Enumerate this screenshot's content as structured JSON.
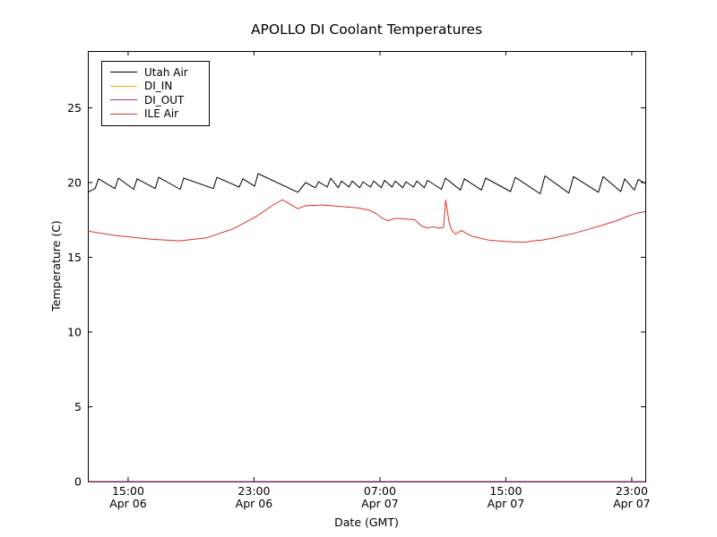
{
  "figure": {
    "background": "#ffffff"
  },
  "chart_data": {
    "type": "line",
    "title": "APOLLO DI Coolant Temperatures",
    "xlabel": "Date (GMT)",
    "ylabel": "Temperature (C)",
    "x_unit": "hours since Apr 06 00:00 GMT",
    "xlim": [
      12.44,
      47.86
    ],
    "ylim": [
      0,
      28.8
    ],
    "grid": false,
    "legend_position": "upper-left",
    "tick_color": "#000000",
    "frame_color": "#000000",
    "xticks": [
      {
        "h": 15,
        "time": "15:00",
        "date": "Apr 06"
      },
      {
        "h": 23,
        "time": "23:00",
        "date": "Apr 06"
      },
      {
        "h": 31,
        "time": "07:00",
        "date": "Apr 07"
      },
      {
        "h": 39,
        "time": "15:00",
        "date": "Apr 07"
      },
      {
        "h": 47,
        "time": "23:00",
        "date": "Apr 07"
      }
    ],
    "yticks": [
      0,
      5,
      10,
      15,
      20,
      25
    ],
    "series": [
      {
        "name": "Utah Air",
        "color": "#000000",
        "points": [
          [
            12.44,
            19.35
          ],
          [
            12.9,
            19.6
          ],
          [
            13.12,
            20.25
          ],
          [
            14.16,
            19.6
          ],
          [
            14.38,
            20.3
          ],
          [
            15.35,
            19.55
          ],
          [
            15.57,
            20.25
          ],
          [
            16.72,
            19.6
          ],
          [
            16.94,
            20.35
          ],
          [
            18.31,
            19.55
          ],
          [
            18.53,
            20.3
          ],
          [
            20.42,
            19.6
          ],
          [
            20.64,
            20.35
          ],
          [
            22.05,
            19.7
          ],
          [
            22.3,
            20.25
          ],
          [
            23.04,
            19.75
          ],
          [
            23.26,
            20.6
          ],
          [
            25.78,
            19.35
          ],
          [
            26.28,
            20.0
          ],
          [
            26.9,
            19.65
          ],
          [
            27.1,
            20.05
          ],
          [
            27.65,
            19.7
          ],
          [
            27.87,
            20.3
          ],
          [
            28.35,
            19.65
          ],
          [
            28.55,
            20.1
          ],
          [
            29.04,
            19.7
          ],
          [
            29.24,
            20.1
          ],
          [
            29.72,
            19.65
          ],
          [
            29.92,
            20.05
          ],
          [
            30.4,
            19.7
          ],
          [
            30.6,
            20.1
          ],
          [
            31.09,
            19.65
          ],
          [
            31.29,
            20.15
          ],
          [
            31.77,
            19.7
          ],
          [
            31.97,
            20.1
          ],
          [
            32.45,
            19.65
          ],
          [
            32.65,
            20.05
          ],
          [
            33.14,
            19.7
          ],
          [
            33.34,
            20.1
          ],
          [
            33.82,
            19.65
          ],
          [
            34.02,
            20.15
          ],
          [
            34.91,
            19.55
          ],
          [
            35.16,
            20.3
          ],
          [
            36.11,
            19.5
          ],
          [
            36.36,
            20.25
          ],
          [
            37.45,
            19.5
          ],
          [
            37.72,
            20.3
          ],
          [
            39.3,
            19.4
          ],
          [
            39.6,
            20.35
          ],
          [
            41.18,
            19.25
          ],
          [
            41.48,
            20.45
          ],
          [
            43.0,
            19.3
          ],
          [
            43.3,
            20.4
          ],
          [
            44.88,
            19.35
          ],
          [
            45.18,
            20.4
          ],
          [
            46.3,
            19.4
          ],
          [
            46.55,
            20.25
          ],
          [
            47.16,
            19.5
          ],
          [
            47.41,
            20.2
          ],
          [
            47.86,
            19.95
          ]
        ]
      },
      {
        "name": "DI_IN",
        "color": "#ffa500",
        "points": [
          [
            12.44,
            0
          ],
          [
            47.86,
            0
          ]
        ]
      },
      {
        "name": "DI_OUT",
        "color": "#993399",
        "points": [
          [
            12.44,
            0
          ],
          [
            47.86,
            0
          ]
        ]
      },
      {
        "name": "ILE Air",
        "color": "#e03030",
        "points": [
          [
            12.44,
            16.75
          ],
          [
            14.26,
            16.45
          ],
          [
            16.54,
            16.2
          ],
          [
            18.25,
            16.1
          ],
          [
            19.96,
            16.3
          ],
          [
            21.67,
            16.9
          ],
          [
            23.09,
            17.7
          ],
          [
            24.23,
            18.5
          ],
          [
            24.8,
            18.85
          ],
          [
            25.77,
            18.25
          ],
          [
            26.28,
            18.45
          ],
          [
            27.36,
            18.5
          ],
          [
            28.49,
            18.4
          ],
          [
            29.64,
            18.3
          ],
          [
            30.32,
            18.15
          ],
          [
            30.78,
            17.9
          ],
          [
            31.18,
            17.6
          ],
          [
            31.52,
            17.45
          ],
          [
            31.92,
            17.6
          ],
          [
            32.32,
            17.6
          ],
          [
            33.23,
            17.5
          ],
          [
            33.63,
            17.1
          ],
          [
            34.03,
            16.95
          ],
          [
            34.37,
            17.05
          ],
          [
            34.77,
            16.95
          ],
          [
            35.05,
            17.0
          ],
          [
            35.17,
            18.85
          ],
          [
            35.4,
            17.3
          ],
          [
            35.57,
            16.8
          ],
          [
            35.8,
            16.55
          ],
          [
            36.19,
            16.8
          ],
          [
            36.48,
            16.6
          ],
          [
            36.88,
            16.4
          ],
          [
            37.9,
            16.15
          ],
          [
            39.04,
            16.05
          ],
          [
            40.18,
            16.0
          ],
          [
            40.75,
            16.1
          ],
          [
            41.32,
            16.15
          ],
          [
            42.29,
            16.35
          ],
          [
            43.31,
            16.6
          ],
          [
            44.34,
            16.9
          ],
          [
            45.13,
            17.15
          ],
          [
            46.04,
            17.45
          ],
          [
            46.73,
            17.75
          ],
          [
            47.3,
            17.95
          ],
          [
            47.86,
            18.05
          ]
        ]
      }
    ]
  }
}
